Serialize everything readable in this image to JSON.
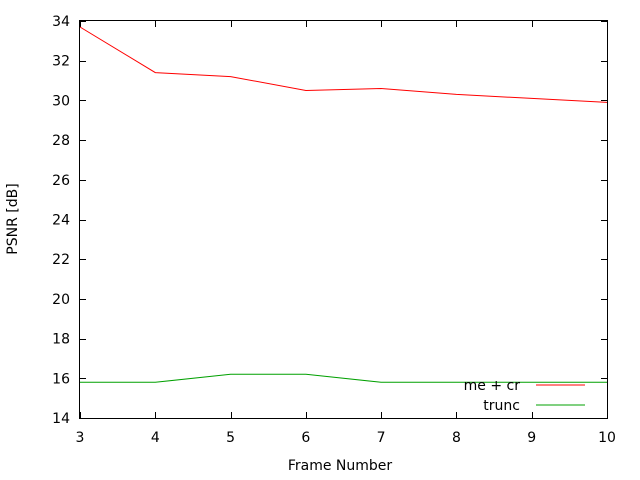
{
  "chart_data": {
    "type": "line",
    "title": "",
    "xlabel": "Frame Number",
    "ylabel": "PSNR [dB]",
    "xlim": [
      3,
      10
    ],
    "ylim": [
      14,
      34
    ],
    "xticks": [
      3,
      4,
      5,
      6,
      7,
      8,
      9,
      10
    ],
    "yticks": [
      14,
      16,
      18,
      20,
      22,
      24,
      26,
      28,
      30,
      32,
      34
    ],
    "grid": false,
    "legend_position": "bottom-right",
    "series": [
      {
        "name": "me + cr",
        "color": "#ff0000",
        "x": [
          3,
          4,
          5,
          6,
          7,
          8,
          9,
          10
        ],
        "y": [
          33.7,
          31.4,
          31.2,
          30.5,
          30.6,
          30.3,
          30.1,
          29.9
        ]
      },
      {
        "name": "trunc",
        "color": "#00a000",
        "x": [
          3,
          4,
          5,
          6,
          7,
          8,
          9,
          10
        ],
        "y": [
          15.8,
          15.8,
          16.2,
          16.2,
          15.8,
          15.8,
          15.8,
          15.8
        ]
      }
    ]
  }
}
